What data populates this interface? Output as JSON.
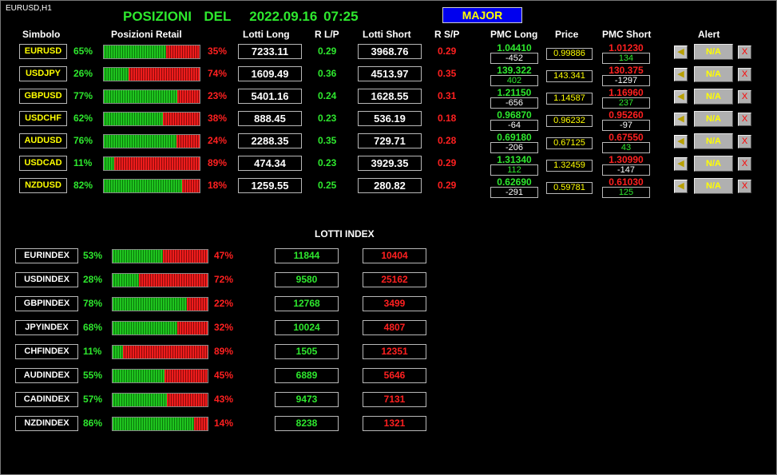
{
  "chart_label": "EURUSD,H1",
  "title": "POSIZIONI  DEL   2022.09.16 07:25",
  "group_button": "MAJOR",
  "headers": {
    "simbolo": "Simbolo",
    "posizioni": "Posizioni Retail",
    "lotti_long": "Lotti Long",
    "rlp": "R L/P",
    "lotti_short": "Lotti Short",
    "rsp": "R S/P",
    "pmc_long": "PMC Long",
    "price": "Price",
    "pmc_short": "PMC Short",
    "alert": "Alert"
  },
  "pairs": [
    {
      "symbol": "EURUSD",
      "long_pct": "65%",
      "short_pct": "35%",
      "long_frac": 0.65,
      "lotti_long": "7233.11",
      "rlp": "0.29",
      "lotti_short": "3968.76",
      "rsp": "0.29",
      "pmc_long": "1.04410",
      "pmc_long_diff": "-452",
      "price": "0.99886",
      "pmc_short": "1.01230",
      "pmc_short_diff": "134",
      "alert": "N/A",
      "alert_x": "X"
    },
    {
      "symbol": "USDJPY",
      "long_pct": "26%",
      "short_pct": "74%",
      "long_frac": 0.26,
      "lotti_long": "1609.49",
      "rlp": "0.36",
      "lotti_short": "4513.97",
      "rsp": "0.35",
      "pmc_long": "139.322",
      "pmc_long_diff": "402",
      "price": "143.341",
      "pmc_short": "130.375",
      "pmc_short_diff": "-1297",
      "alert": "N/A",
      "alert_x": "X"
    },
    {
      "symbol": "GBPUSD",
      "long_pct": "77%",
      "short_pct": "23%",
      "long_frac": 0.77,
      "lotti_long": "5401.16",
      "rlp": "0.24",
      "lotti_short": "1628.55",
      "rsp": "0.31",
      "pmc_long": "1.21150",
      "pmc_long_diff": "-656",
      "price": "1.14587",
      "pmc_short": "1.16960",
      "pmc_short_diff": "237",
      "alert": "N/A",
      "alert_x": "X"
    },
    {
      "symbol": "USDCHF",
      "long_pct": "62%",
      "short_pct": "38%",
      "long_frac": 0.62,
      "lotti_long": "888.45",
      "rlp": "0.23",
      "lotti_short": "536.19",
      "rsp": "0.18",
      "pmc_long": "0.96870",
      "pmc_long_diff": "-64",
      "price": "0.96232",
      "pmc_short": "0.95260",
      "pmc_short_diff": "-97",
      "alert": "N/A",
      "alert_x": "X"
    },
    {
      "symbol": "AUDUSD",
      "long_pct": "76%",
      "short_pct": "24%",
      "long_frac": 0.76,
      "lotti_long": "2288.35",
      "rlp": "0.35",
      "lotti_short": "729.71",
      "rsp": "0.28",
      "pmc_long": "0.69180",
      "pmc_long_diff": "-206",
      "price": "0.67125",
      "pmc_short": "0.67550",
      "pmc_short_diff": "43",
      "alert": "N/A",
      "alert_x": "X"
    },
    {
      "symbol": "USDCAD",
      "long_pct": "11%",
      "short_pct": "89%",
      "long_frac": 0.11,
      "lotti_long": "474.34",
      "rlp": "0.23",
      "lotti_short": "3929.35",
      "rsp": "0.29",
      "pmc_long": "1.31340",
      "pmc_long_diff": "112",
      "price": "1.32459",
      "pmc_short": "1.30990",
      "pmc_short_diff": "-147",
      "alert": "N/A",
      "alert_x": "X"
    },
    {
      "symbol": "NZDUSD",
      "long_pct": "82%",
      "short_pct": "18%",
      "long_frac": 0.82,
      "lotti_long": "1259.55",
      "rlp": "0.25",
      "lotti_short": "280.82",
      "rsp": "0.29",
      "pmc_long": "0.62690",
      "pmc_long_diff": "-291",
      "price": "0.59781",
      "pmc_short": "0.61030",
      "pmc_short_diff": "125",
      "alert": "N/A",
      "alert_x": "X"
    }
  ],
  "lotti_index_title": "LOTTI INDEX",
  "indexes": [
    {
      "symbol": "EURINDEX",
      "long_pct": "53%",
      "short_pct": "47%",
      "long_frac": 0.53,
      "long": "11844",
      "short": "10404"
    },
    {
      "symbol": "USDINDEX",
      "long_pct": "28%",
      "short_pct": "72%",
      "long_frac": 0.28,
      "long": "9580",
      "short": "25162"
    },
    {
      "symbol": "GBPINDEX",
      "long_pct": "78%",
      "short_pct": "22%",
      "long_frac": 0.78,
      "long": "12768",
      "short": "3499"
    },
    {
      "symbol": "JPYINDEX",
      "long_pct": "68%",
      "short_pct": "32%",
      "long_frac": 0.68,
      "long": "10024",
      "short": "4807"
    },
    {
      "symbol": "CHFINDEX",
      "long_pct": "11%",
      "short_pct": "89%",
      "long_frac": 0.11,
      "long": "1505",
      "short": "12351"
    },
    {
      "symbol": "AUDINDEX",
      "long_pct": "55%",
      "short_pct": "45%",
      "long_frac": 0.55,
      "long": "6889",
      "short": "5646"
    },
    {
      "symbol": "CADINDEX",
      "long_pct": "57%",
      "short_pct": "43%",
      "long_frac": 0.57,
      "long": "9473",
      "short": "7131"
    },
    {
      "symbol": "NZDINDEX",
      "long_pct": "86%",
      "short_pct": "14%",
      "long_frac": 0.86,
      "long": "8238",
      "short": "1321"
    }
  ],
  "colors": {
    "long": "#2ee82e",
    "short": "#ff2020",
    "symbol_text": "#ffff00",
    "major_bg": "#0000ee"
  },
  "icons": {
    "alert": "bell-icon",
    "remove": "close-icon"
  }
}
